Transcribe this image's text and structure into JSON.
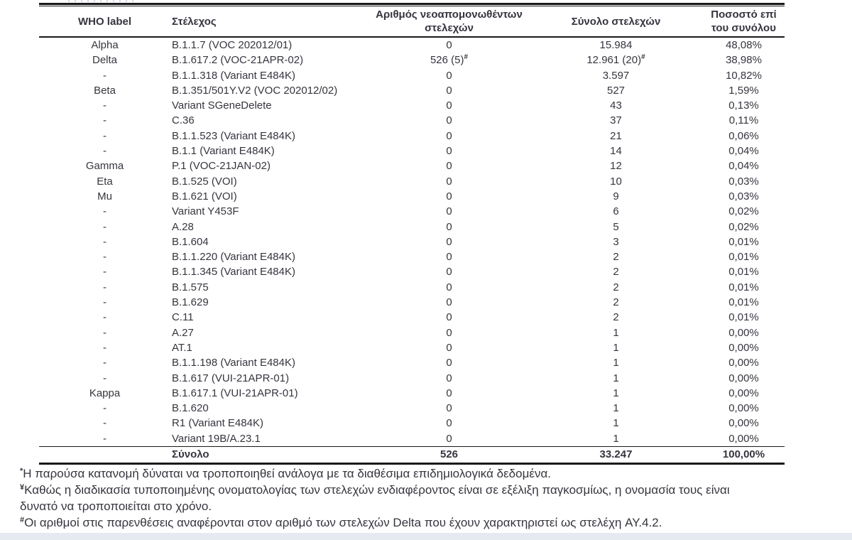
{
  "page": {
    "background": "#ffffff",
    "text_color": "#35353f",
    "rule_color": "#191919",
    "bottom_strip_color": "#e4eaf0"
  },
  "table": {
    "columns": [
      {
        "label": "WHO label"
      },
      {
        "label": "Στέλεχος"
      },
      {
        "label": "Αριθμός νεοαπομονωθέντων στελεχών"
      },
      {
        "label": "Σύνολο στελεχών"
      },
      {
        "label": "Ποσοστό επί του συνόλου"
      }
    ],
    "rows": [
      {
        "who": "Alpha",
        "strain": "B.1.1.7 (VOC 202012/01)",
        "newly": "0",
        "total": "15.984",
        "pct": "48,08%"
      },
      {
        "who": "Delta",
        "strain": "B.1.617.2 (VOC-21APR-02)",
        "newly": "526 (5)",
        "newly_sup": "#",
        "total": "12.961 (20)",
        "total_sup": "#",
        "pct": "38,98%"
      },
      {
        "who": "-",
        "strain": "B.1.1.318 (Variant E484K)",
        "newly": "0",
        "total": "3.597",
        "pct": "10,82%"
      },
      {
        "who": "Beta",
        "strain": "B.1.351/501Y.V2 (VOC 202012/02)",
        "newly": "0",
        "total": "527",
        "pct": "1,59%"
      },
      {
        "who": "-",
        "strain": "Variant SGeneDelete",
        "newly": "0",
        "total": "43",
        "pct": "0,13%"
      },
      {
        "who": "-",
        "strain": "C.36",
        "newly": "0",
        "total": "37",
        "pct": "0,11%"
      },
      {
        "who": "-",
        "strain": "B.1.1.523 (Variant E484K)",
        "newly": "0",
        "total": "21",
        "pct": "0,06%"
      },
      {
        "who": "-",
        "strain": "B.1.1 (Variant E484K)",
        "newly": "0",
        "total": "14",
        "pct": "0,04%"
      },
      {
        "who": "Gamma",
        "strain": "P.1 (VOC-21JAN-02)",
        "newly": "0",
        "total": "12",
        "pct": "0,04%"
      },
      {
        "who": "Eta",
        "strain": "B.1.525 (VOI)",
        "newly": "0",
        "total": "10",
        "pct": "0,03%"
      },
      {
        "who": "Mu",
        "strain": "B.1.621 (VOI)",
        "newly": "0",
        "total": "9",
        "pct": "0,03%"
      },
      {
        "who": "-",
        "strain": "Variant Y453F",
        "newly": "0",
        "total": "6",
        "pct": "0,02%"
      },
      {
        "who": "-",
        "strain": "A.28",
        "newly": "0",
        "total": "5",
        "pct": "0,02%"
      },
      {
        "who": "-",
        "strain": "B.1.604",
        "newly": "0",
        "total": "3",
        "pct": "0,01%"
      },
      {
        "who": "-",
        "strain": "B.1.1.220 (Variant E484K)",
        "newly": "0",
        "total": "2",
        "pct": "0,01%"
      },
      {
        "who": "-",
        "strain": "B.1.1.345 (Variant E484K)",
        "newly": "0",
        "total": "2",
        "pct": "0,01%"
      },
      {
        "who": "-",
        "strain": "B.1.575",
        "newly": "0",
        "total": "2",
        "pct": "0,01%"
      },
      {
        "who": "-",
        "strain": "B.1.629",
        "newly": "0",
        "total": "2",
        "pct": "0,01%"
      },
      {
        "who": "-",
        "strain": "C.11",
        "newly": "0",
        "total": "2",
        "pct": "0,01%"
      },
      {
        "who": "-",
        "strain": "A.27",
        "newly": "0",
        "total": "1",
        "pct": "0,00%"
      },
      {
        "who": "-",
        "strain": "AT.1",
        "newly": "0",
        "total": "1",
        "pct": "0,00%"
      },
      {
        "who": "-",
        "strain": "B.1.1.198 (Variant E484K)",
        "newly": "0",
        "total": "1",
        "pct": "0,00%"
      },
      {
        "who": "-",
        "strain": "B.1.617 (VUI-21APR-01)",
        "newly": "0",
        "total": "1",
        "pct": "0,00%"
      },
      {
        "who": "Kappa",
        "strain": "B.1.617.1 (VUI-21APR-01)",
        "newly": "0",
        "total": "1",
        "pct": "0,00%"
      },
      {
        "who": "-",
        "strain": "B.1.620",
        "newly": "0",
        "total": "1",
        "pct": "0,00%"
      },
      {
        "who": "-",
        "strain": "R1 (Variant E484K)",
        "newly": "0",
        "total": "1",
        "pct": "0,00%"
      },
      {
        "who": "-",
        "strain": "Variant 19B/A.23.1",
        "newly": "0",
        "total": "1",
        "pct": "0,00%"
      }
    ],
    "total_row": {
      "label": "Σύνολο",
      "newly": "526",
      "total": "33.247",
      "pct": "100,00%"
    }
  },
  "footnotes": [
    {
      "marker": "*",
      "text": "Η παρούσα κατανομή δύναται να τροποποιηθεί ανάλογα με τα διαθέσιμα επιδημιολογικά δεδομένα."
    },
    {
      "marker": "¥",
      "text": "Καθώς η διαδικασία τυποποιημένης ονοματολογίας των στελεχών ενδιαφέροντος είναι σε εξέλιξη παγκοσμίως, η ονομασία τους είναι\nδυνατό να τροποποιείται στο χρόνο."
    },
    {
      "marker": "#",
      "text": "Οι αριθμοί στις παρενθέσεις αναφέρονται στον αριθμό των στελεχών Delta που έχουν χαρακτηριστεί ως στελέχη AY.4.2."
    }
  ]
}
